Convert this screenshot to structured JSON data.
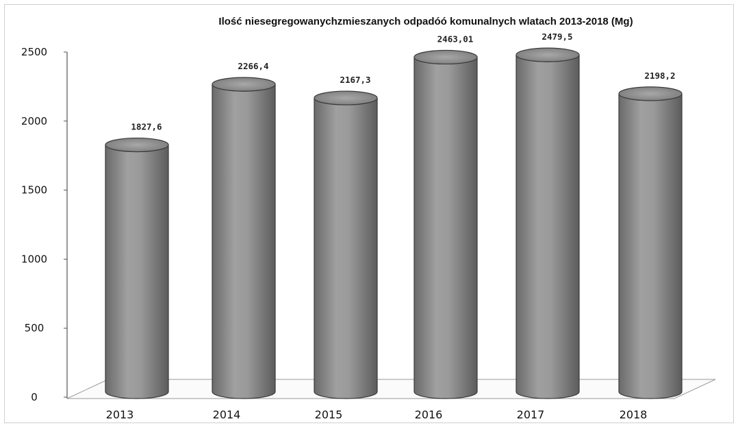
{
  "chart_data": {
    "type": "bar",
    "title": "Ilość niesegregowanychzmieszanych odpadóó komunalnych wlatach 2013-2018 (Mg)",
    "xlabel": "",
    "ylabel": "",
    "categories": [
      "2013",
      "2014",
      "2015",
      "2016",
      "2017",
      "2018"
    ],
    "values": [
      1827.6,
      2266.4,
      2167.3,
      2463.01,
      2479.5,
      2198.2
    ],
    "value_labels": [
      "1827,6",
      "2266,4",
      "2167,3",
      "2463,01",
      "2479,5",
      "2198,2"
    ],
    "ylim": [
      0,
      2500
    ],
    "yticks": [
      0,
      500,
      1000,
      1500,
      2000,
      2500
    ],
    "ytick_labels": [
      "0",
      "500",
      "1000",
      "1500",
      "2000",
      "2500"
    ],
    "grid": false,
    "legend": "none",
    "bar_shape": "3d-cylinder",
    "bar_color": "#8c8c8c"
  }
}
